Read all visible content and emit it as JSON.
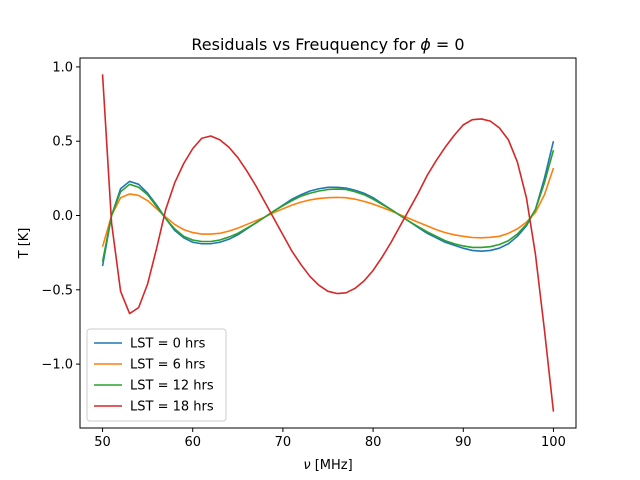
{
  "chart_data": {
    "type": "line",
    "title_prefix": "Residuals vs Freuquency for ",
    "title_symbol": "ϕ",
    "title_suffix": " = 0",
    "xlabel_symbol": "ν",
    "xlabel_unit": " [MHz]",
    "ylabel": "T [K]",
    "xlim": [
      47.5,
      102.5
    ],
    "ylim": [
      -1.43,
      1.06
    ],
    "xticks": [
      50,
      60,
      70,
      80,
      90,
      100
    ],
    "xtick_labels": [
      "50",
      "60",
      "70",
      "80",
      "90",
      "100"
    ],
    "yticks": [
      1.0,
      0.5,
      0.0,
      -0.5,
      -1.0
    ],
    "ytick_labels": [
      "1.0",
      "0.5",
      "0.0",
      "−0.5",
      "−1.0"
    ],
    "grid": false,
    "legend_position": "lower-left",
    "x": [
      50,
      51,
      52,
      53,
      54,
      55,
      56,
      57,
      58,
      59,
      60,
      61,
      62,
      63,
      64,
      65,
      66,
      67,
      68,
      69,
      70,
      71,
      72,
      73,
      74,
      75,
      76,
      77,
      78,
      79,
      80,
      81,
      82,
      83,
      84,
      85,
      86,
      87,
      88,
      89,
      90,
      91,
      92,
      93,
      94,
      95,
      96,
      97,
      98,
      99,
      100
    ],
    "series": [
      {
        "name": "LST = 0 hrs",
        "color": "#1f77b4",
        "values": [
          -0.34,
          0.0,
          0.18,
          0.23,
          0.21,
          0.15,
          0.07,
          -0.02,
          -0.1,
          -0.15,
          -0.18,
          -0.19,
          -0.19,
          -0.18,
          -0.16,
          -0.13,
          -0.09,
          -0.05,
          -0.01,
          0.03,
          0.07,
          0.11,
          0.14,
          0.165,
          0.18,
          0.19,
          0.19,
          0.185,
          0.17,
          0.15,
          0.12,
          0.08,
          0.04,
          0.0,
          -0.04,
          -0.08,
          -0.12,
          -0.15,
          -0.18,
          -0.2,
          -0.22,
          -0.235,
          -0.24,
          -0.235,
          -0.22,
          -0.19,
          -0.14,
          -0.07,
          0.04,
          0.25,
          0.5
        ]
      },
      {
        "name": "LST = 6 hrs",
        "color": "#ff7f0e",
        "values": [
          -0.21,
          0.0,
          0.12,
          0.145,
          0.135,
          0.1,
          0.045,
          -0.01,
          -0.06,
          -0.095,
          -0.115,
          -0.125,
          -0.125,
          -0.12,
          -0.105,
          -0.085,
          -0.06,
          -0.035,
          -0.01,
          0.02,
          0.045,
          0.07,
          0.09,
          0.105,
          0.115,
          0.12,
          0.122,
          0.12,
          0.11,
          0.095,
          0.077,
          0.055,
          0.03,
          0.005,
          -0.02,
          -0.045,
          -0.07,
          -0.095,
          -0.115,
          -0.13,
          -0.14,
          -0.148,
          -0.15,
          -0.147,
          -0.14,
          -0.12,
          -0.09,
          -0.045,
          0.02,
          0.14,
          0.32
        ]
      },
      {
        "name": "LST = 12 hrs",
        "color": "#2ca02c",
        "values": [
          -0.31,
          0.0,
          0.16,
          0.21,
          0.19,
          0.14,
          0.06,
          -0.02,
          -0.09,
          -0.14,
          -0.165,
          -0.175,
          -0.175,
          -0.165,
          -0.145,
          -0.12,
          -0.085,
          -0.05,
          -0.01,
          0.03,
          0.065,
          0.1,
          0.13,
          0.15,
          0.165,
          0.175,
          0.178,
          0.175,
          0.16,
          0.14,
          0.11,
          0.075,
          0.04,
          0.0,
          -0.04,
          -0.075,
          -0.11,
          -0.14,
          -0.17,
          -0.19,
          -0.205,
          -0.215,
          -0.215,
          -0.21,
          -0.195,
          -0.17,
          -0.125,
          -0.06,
          0.04,
          0.22,
          0.44
        ]
      },
      {
        "name": "LST = 18 hrs",
        "color": "#d62728",
        "values": [
          0.95,
          -0.05,
          -0.51,
          -0.66,
          -0.62,
          -0.46,
          -0.22,
          0.04,
          0.22,
          0.35,
          0.45,
          0.52,
          0.535,
          0.51,
          0.46,
          0.39,
          0.3,
          0.2,
          0.09,
          -0.02,
          -0.13,
          -0.24,
          -0.33,
          -0.41,
          -0.47,
          -0.51,
          -0.525,
          -0.52,
          -0.49,
          -0.44,
          -0.37,
          -0.28,
          -0.18,
          -0.07,
          0.04,
          0.15,
          0.27,
          0.37,
          0.46,
          0.54,
          0.61,
          0.645,
          0.65,
          0.635,
          0.59,
          0.51,
          0.36,
          0.12,
          -0.26,
          -0.77,
          -1.32
        ]
      }
    ]
  }
}
